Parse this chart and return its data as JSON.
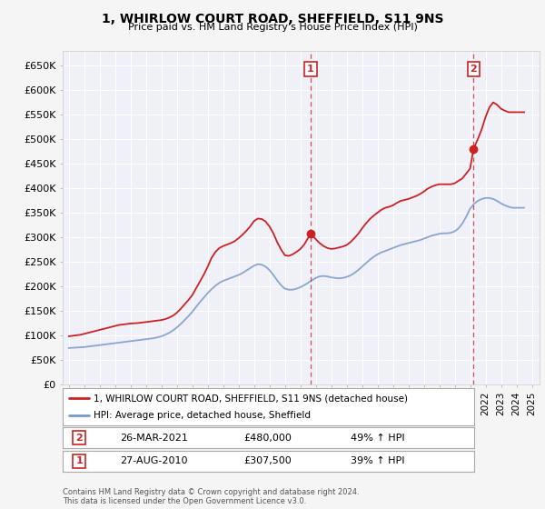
{
  "title": "1, WHIRLOW COURT ROAD, SHEFFIELD, S11 9NS",
  "subtitle": "Price paid vs. HM Land Registry's House Price Index (HPI)",
  "background_color": "#f5f5f5",
  "plot_bg_color": "#f0f0f8",
  "grid_color": "#ffffff",
  "red_color": "#cc2222",
  "blue_color": "#7799cc",
  "ylim": [
    0,
    680000
  ],
  "yticks": [
    0,
    50000,
    100000,
    150000,
    200000,
    250000,
    300000,
    350000,
    400000,
    450000,
    500000,
    550000,
    600000,
    650000
  ],
  "ytick_labels": [
    "£0",
    "£50K",
    "£100K",
    "£150K",
    "£200K",
    "£250K",
    "£300K",
    "£350K",
    "£400K",
    "£450K",
    "£500K",
    "£550K",
    "£600K",
    "£650K"
  ],
  "xlim": [
    1994.6,
    2025.5
  ],
  "sale1_year": 2010.67,
  "sale1_price": 307500,
  "sale1_label": "1",
  "sale1_date": "27-AUG-2010",
  "sale1_amount": "£307,500",
  "sale1_pct": "39% ↑ HPI",
  "sale2_year": 2021.22,
  "sale2_price": 480000,
  "sale2_label": "2",
  "sale2_date": "26-MAR-2021",
  "sale2_amount": "£480,000",
  "sale2_pct": "49% ↑ HPI",
  "legend_line1": "1, WHIRLOW COURT ROAD, SHEFFIELD, S11 9NS (detached house)",
  "legend_line2": "HPI: Average price, detached house, Sheffield",
  "footer1": "Contains HM Land Registry data © Crown copyright and database right 2024.",
  "footer2": "This data is licensed under the Open Government Licence v3.0.",
  "red_x": [
    1995.0,
    1995.25,
    1995.5,
    1995.75,
    1996.0,
    1996.25,
    1996.5,
    1996.75,
    1997.0,
    1997.25,
    1997.5,
    1997.75,
    1998.0,
    1998.25,
    1998.5,
    1998.75,
    1999.0,
    1999.25,
    1999.5,
    1999.75,
    2000.0,
    2000.25,
    2000.5,
    2000.75,
    2001.0,
    2001.25,
    2001.5,
    2001.75,
    2002.0,
    2002.25,
    2002.5,
    2002.75,
    2003.0,
    2003.25,
    2003.5,
    2003.75,
    2004.0,
    2004.25,
    2004.5,
    2004.75,
    2005.0,
    2005.25,
    2005.5,
    2005.75,
    2006.0,
    2006.25,
    2006.5,
    2006.75,
    2007.0,
    2007.25,
    2007.5,
    2007.75,
    2008.0,
    2008.25,
    2008.5,
    2008.75,
    2009.0,
    2009.25,
    2009.5,
    2009.75,
    2010.0,
    2010.25,
    2010.67,
    2011.0,
    2011.25,
    2011.5,
    2011.75,
    2012.0,
    2012.25,
    2012.5,
    2012.75,
    2013.0,
    2013.25,
    2013.5,
    2013.75,
    2014.0,
    2014.25,
    2014.5,
    2014.75,
    2015.0,
    2015.25,
    2015.5,
    2015.75,
    2016.0,
    2016.25,
    2016.5,
    2016.75,
    2017.0,
    2017.25,
    2017.5,
    2017.75,
    2018.0,
    2018.25,
    2018.5,
    2018.75,
    2019.0,
    2019.25,
    2019.5,
    2019.75,
    2020.0,
    2020.25,
    2020.5,
    2020.75,
    2021.0,
    2021.22,
    2021.5,
    2021.75,
    2022.0,
    2022.25,
    2022.5,
    2022.75,
    2023.0,
    2023.25,
    2023.5,
    2023.75,
    2024.0,
    2024.25,
    2024.5
  ],
  "red_y": [
    98000,
    99000,
    100000,
    101000,
    103000,
    105000,
    107000,
    109000,
    111000,
    113000,
    115000,
    117000,
    119000,
    121000,
    122000,
    123000,
    124000,
    124500,
    125000,
    126000,
    127000,
    128000,
    129000,
    130000,
    131000,
    133000,
    136000,
    140000,
    146000,
    154000,
    163000,
    172000,
    182000,
    196000,
    210000,
    224000,
    240000,
    258000,
    270000,
    278000,
    282000,
    285000,
    288000,
    292000,
    298000,
    305000,
    313000,
    322000,
    333000,
    338000,
    337000,
    332000,
    322000,
    308000,
    290000,
    275000,
    263000,
    262000,
    265000,
    270000,
    276000,
    285000,
    307500,
    296000,
    288000,
    282000,
    278000,
    276000,
    277000,
    279000,
    281000,
    284000,
    290000,
    298000,
    307000,
    318000,
    328000,
    337000,
    344000,
    350000,
    356000,
    360000,
    362000,
    365000,
    370000,
    374000,
    376000,
    378000,
    381000,
    384000,
    388000,
    393000,
    399000,
    403000,
    406000,
    408000,
    408000,
    408000,
    408000,
    410000,
    415000,
    420000,
    430000,
    440000,
    480000,
    500000,
    520000,
    545000,
    565000,
    575000,
    570000,
    562000,
    558000,
    555000,
    555000,
    555000,
    555000,
    555000
  ],
  "blue_x": [
    1995.0,
    1995.25,
    1995.5,
    1995.75,
    1996.0,
    1996.25,
    1996.5,
    1996.75,
    1997.0,
    1997.25,
    1997.5,
    1997.75,
    1998.0,
    1998.25,
    1998.5,
    1998.75,
    1999.0,
    1999.25,
    1999.5,
    1999.75,
    2000.0,
    2000.25,
    2000.5,
    2000.75,
    2001.0,
    2001.25,
    2001.5,
    2001.75,
    2002.0,
    2002.25,
    2002.5,
    2002.75,
    2003.0,
    2003.25,
    2003.5,
    2003.75,
    2004.0,
    2004.25,
    2004.5,
    2004.75,
    2005.0,
    2005.25,
    2005.5,
    2005.75,
    2006.0,
    2006.25,
    2006.5,
    2006.75,
    2007.0,
    2007.25,
    2007.5,
    2007.75,
    2008.0,
    2008.25,
    2008.5,
    2008.75,
    2009.0,
    2009.25,
    2009.5,
    2009.75,
    2010.0,
    2010.25,
    2010.5,
    2010.75,
    2011.0,
    2011.25,
    2011.5,
    2011.75,
    2012.0,
    2012.25,
    2012.5,
    2012.75,
    2013.0,
    2013.25,
    2013.5,
    2013.75,
    2014.0,
    2014.25,
    2014.5,
    2014.75,
    2015.0,
    2015.25,
    2015.5,
    2015.75,
    2016.0,
    2016.25,
    2016.5,
    2016.75,
    2017.0,
    2017.25,
    2017.5,
    2017.75,
    2018.0,
    2018.25,
    2018.5,
    2018.75,
    2019.0,
    2019.25,
    2019.5,
    2019.75,
    2020.0,
    2020.25,
    2020.5,
    2020.75,
    2021.0,
    2021.25,
    2021.5,
    2021.75,
    2022.0,
    2022.25,
    2022.5,
    2022.75,
    2023.0,
    2023.25,
    2023.5,
    2023.75,
    2024.0,
    2024.25,
    2024.5
  ],
  "blue_y": [
    74000,
    74500,
    75000,
    75500,
    76000,
    77000,
    78000,
    79000,
    80000,
    81000,
    82000,
    83000,
    84000,
    85000,
    86000,
    87000,
    88000,
    89000,
    90000,
    91000,
    92000,
    93000,
    94000,
    96000,
    98000,
    101000,
    105000,
    110000,
    116000,
    123000,
    131000,
    139000,
    148000,
    158000,
    168000,
    177000,
    186000,
    194000,
    201000,
    207000,
    211000,
    214000,
    217000,
    220000,
    223000,
    227000,
    232000,
    237000,
    242000,
    245000,
    244000,
    240000,
    233000,
    223000,
    212000,
    202000,
    195000,
    193000,
    193000,
    195000,
    198000,
    202000,
    207000,
    212000,
    217000,
    220000,
    221000,
    220000,
    218000,
    217000,
    216000,
    217000,
    219000,
    222000,
    227000,
    233000,
    240000,
    247000,
    254000,
    260000,
    265000,
    269000,
    272000,
    275000,
    278000,
    281000,
    284000,
    286000,
    288000,
    290000,
    292000,
    294000,
    297000,
    300000,
    303000,
    305000,
    307000,
    308000,
    308000,
    309000,
    312000,
    318000,
    328000,
    342000,
    358000,
    368000,
    374000,
    378000,
    380000,
    380000,
    378000,
    374000,
    369000,
    365000,
    362000,
    360000,
    360000,
    360000,
    360000
  ]
}
